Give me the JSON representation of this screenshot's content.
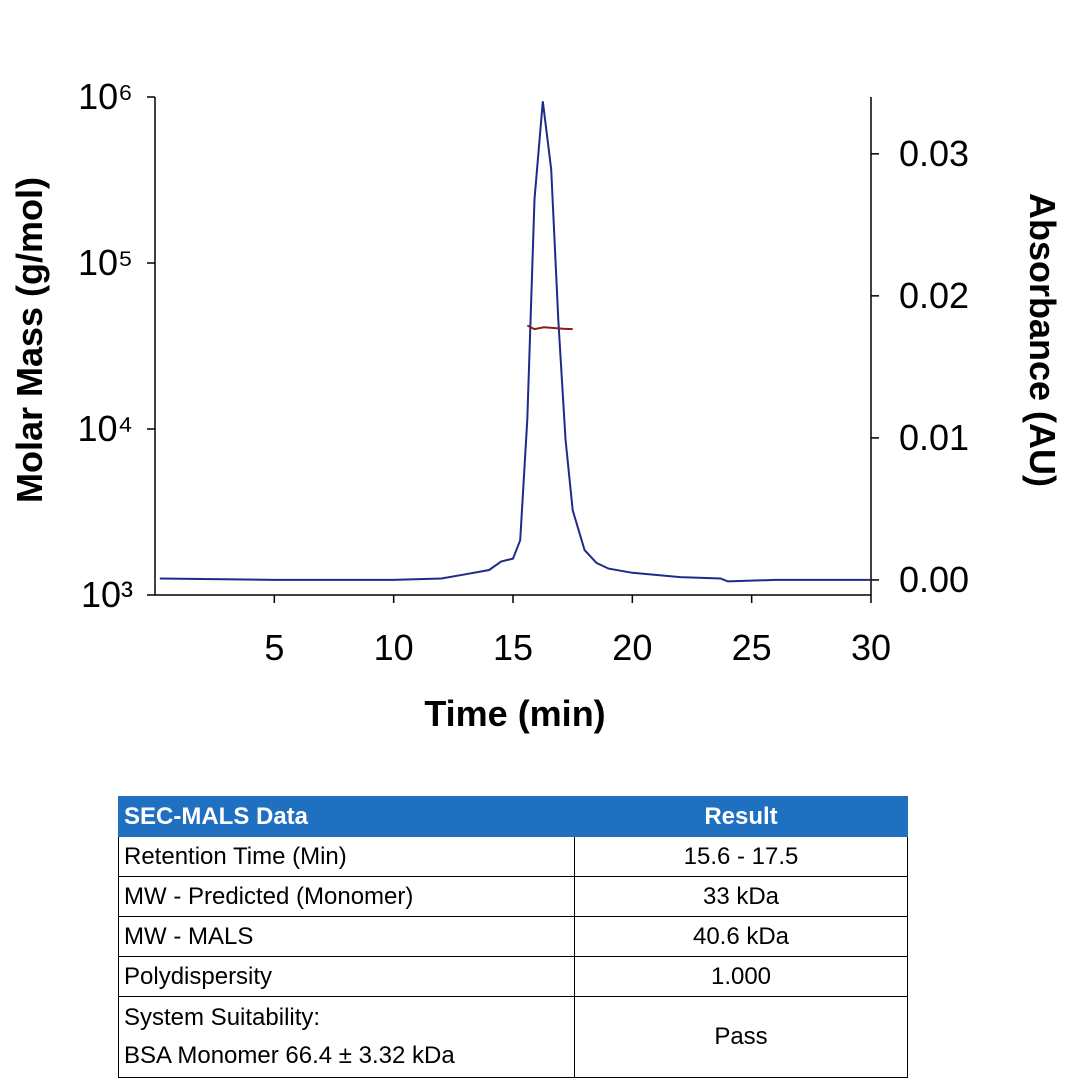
{
  "chart_data": {
    "type": "line",
    "x_label": "Time (min)",
    "y_label": "Molar Mass (g/mol)",
    "y2_label": "Absorbance (AU)",
    "xlim": [
      0,
      30
    ],
    "xticks": [
      5,
      10,
      15,
      20,
      25,
      30
    ],
    "ylim": [
      1000,
      1000000
    ],
    "log_y": true,
    "yticks": [
      {
        "value": 1000,
        "label": "10³"
      },
      {
        "value": 10000,
        "label": "10⁴"
      },
      {
        "value": 100000,
        "label": "10⁵"
      },
      {
        "value": 1000000,
        "label": "10⁶"
      }
    ],
    "y2lim": [
      -0.00106,
      0.034
    ],
    "y2ticks": [
      {
        "value": 0,
        "label": "0.00"
      },
      {
        "value": 0.01,
        "label": "0.01"
      },
      {
        "value": 0.02,
        "label": "0.02"
      },
      {
        "value": 0.03,
        "label": "0.03"
      }
    ],
    "series": [
      {
        "color": "#1f2a8a",
        "axis": "y2",
        "x": [
          0.2,
          5,
          10,
          12,
          13,
          14,
          14.5,
          15,
          15.3,
          15.6,
          15.9,
          16.25,
          16.6,
          16.9,
          17.2,
          17.5,
          18,
          18.5,
          19,
          20,
          22,
          23.7,
          24,
          26,
          30
        ],
        "values": [
          0.0001,
          0,
          0,
          0.0001,
          0.0004,
          0.0007,
          0.0013,
          0.0015,
          0.0028,
          0.0113,
          0.0268,
          0.0337,
          0.0289,
          0.0183,
          0.0099,
          0.0049,
          0.0021,
          0.0012,
          0.0008,
          0.0005,
          0.0002,
          0.0001,
          -0.0001,
          0,
          0
        ]
      },
      {
        "color": "#8b1a1a",
        "x": [
          15.6,
          15.9,
          16.3,
          16.7,
          17.1,
          17.5
        ],
        "values": [
          42000,
          40000,
          41000,
          40600,
          40200,
          40000
        ]
      }
    ]
  },
  "table": {
    "header": [
      "SEC-MALS Data",
      "Result"
    ],
    "rows": [
      [
        "Retention Time (Min)",
        "15.6 - 17.5"
      ],
      [
        "MW - Predicted (Monomer)",
        "33 kDa"
      ],
      [
        "MW - MALS",
        "40.6 kDa"
      ],
      [
        "Polydispersity",
        "1.000"
      ],
      [
        [
          "System Suitability:",
          "BSA Monomer 66.4 ± 3.32 kDa"
        ],
        "Pass"
      ]
    ]
  }
}
